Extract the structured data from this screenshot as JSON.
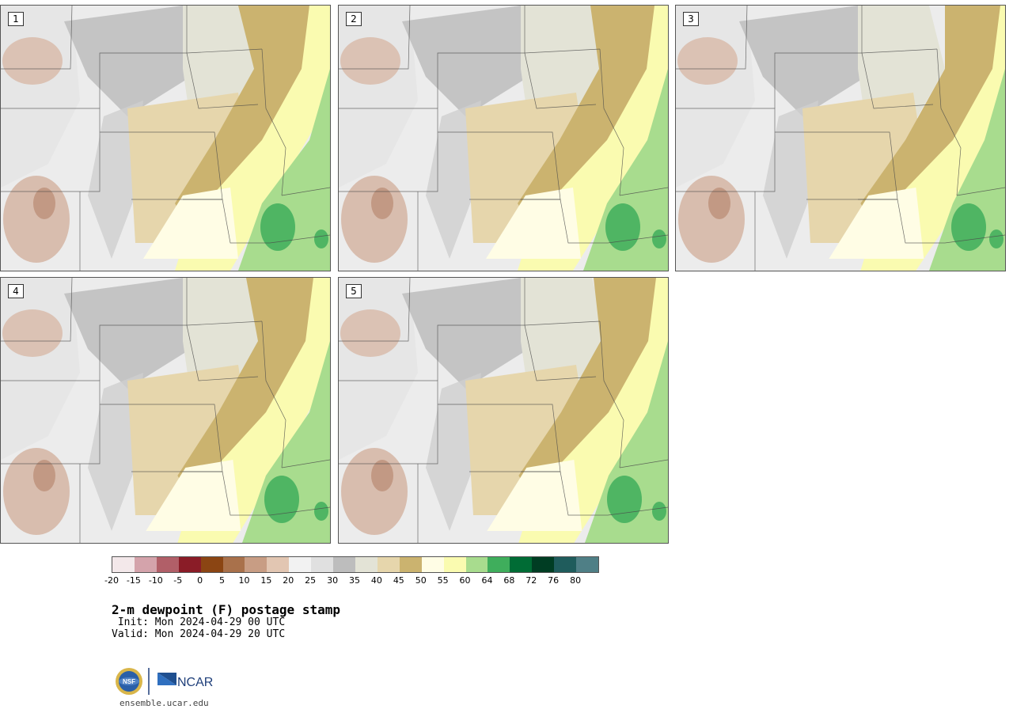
{
  "panels": [
    {
      "label": "1"
    },
    {
      "label": "2"
    },
    {
      "label": "3"
    },
    {
      "label": "4"
    },
    {
      "label": "5"
    }
  ],
  "colorbar": {
    "colors": [
      "#f3e8ea",
      "#d4a3ab",
      "#b15f68",
      "#8a1c27",
      "#8b4513",
      "#a9714b",
      "#c89d84",
      "#e2c6b2",
      "#f2f2f2",
      "#e0e0e0",
      "#bdbdbd",
      "#e3e3d6",
      "#e6d6ac",
      "#cbb36f",
      "#fffde5",
      "#fafbb0",
      "#a8dc8e",
      "#3fae5c",
      "#006c35",
      "#003d23",
      "#1f5c5c",
      "#4f7f86"
    ],
    "ticks": [
      "-20",
      "-15",
      "-10",
      "-5",
      "0",
      "5",
      "10",
      "15",
      "20",
      "25",
      "30",
      "35",
      "40",
      "45",
      "50",
      "55",
      "60",
      "64",
      "68",
      "72",
      "76",
      "80"
    ]
  },
  "title": "2-m dewpoint (F) postage stamp",
  "init": " Init: Mon 2024-04-29 00 UTC",
  "valid": "Valid: Mon 2024-04-29 20 UTC",
  "logos": {
    "nsf": "NSF",
    "ncar": "NCAR"
  },
  "url": "ensemble.ucar.edu"
}
